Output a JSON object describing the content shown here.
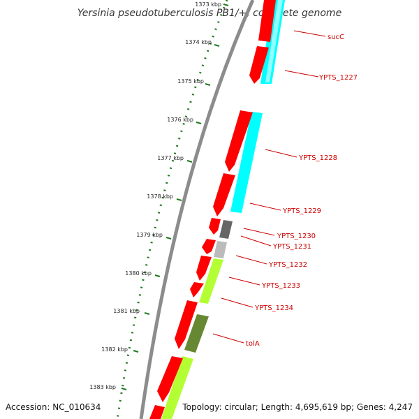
{
  "title": "Yersinia pseudotuberculosis PB1/+, complete genome",
  "accession_label": "Accession: NC_010634",
  "topology_label": "Topology: circular; Length: 4,695,619 bp; Genes: 4,247",
  "axis": {
    "tick_labels": [
      "1373 kbp",
      "1374 kbp",
      "1375 kbp",
      "1376 kbp",
      "1377 kbp",
      "1378 kbp",
      "1379 kbp",
      "1380 kbp",
      "1381 kbp",
      "1382 kbp",
      "1383 kbp"
    ]
  },
  "gene_labels": [
    "sucC",
    "YPTS_1227",
    "YPTS_1228",
    "YPTS_1229",
    "YPTS_1230",
    "YPTS_1231",
    "YPTS_1232",
    "YPTS_1233",
    "YPTS_1234",
    "tolA"
  ],
  "colors": {
    "cds": "#ff0000",
    "backbone": "#8c8c8c",
    "ticks": "#1f7a1f",
    "label_text": "#cc0000",
    "cog_cyan": "#00ffff",
    "cog_dark_gray": "#666666",
    "cog_light_gray": "#bbbbbb",
    "cog_yellow_green": "#b3ff33",
    "cog_olive": "#668833"
  }
}
